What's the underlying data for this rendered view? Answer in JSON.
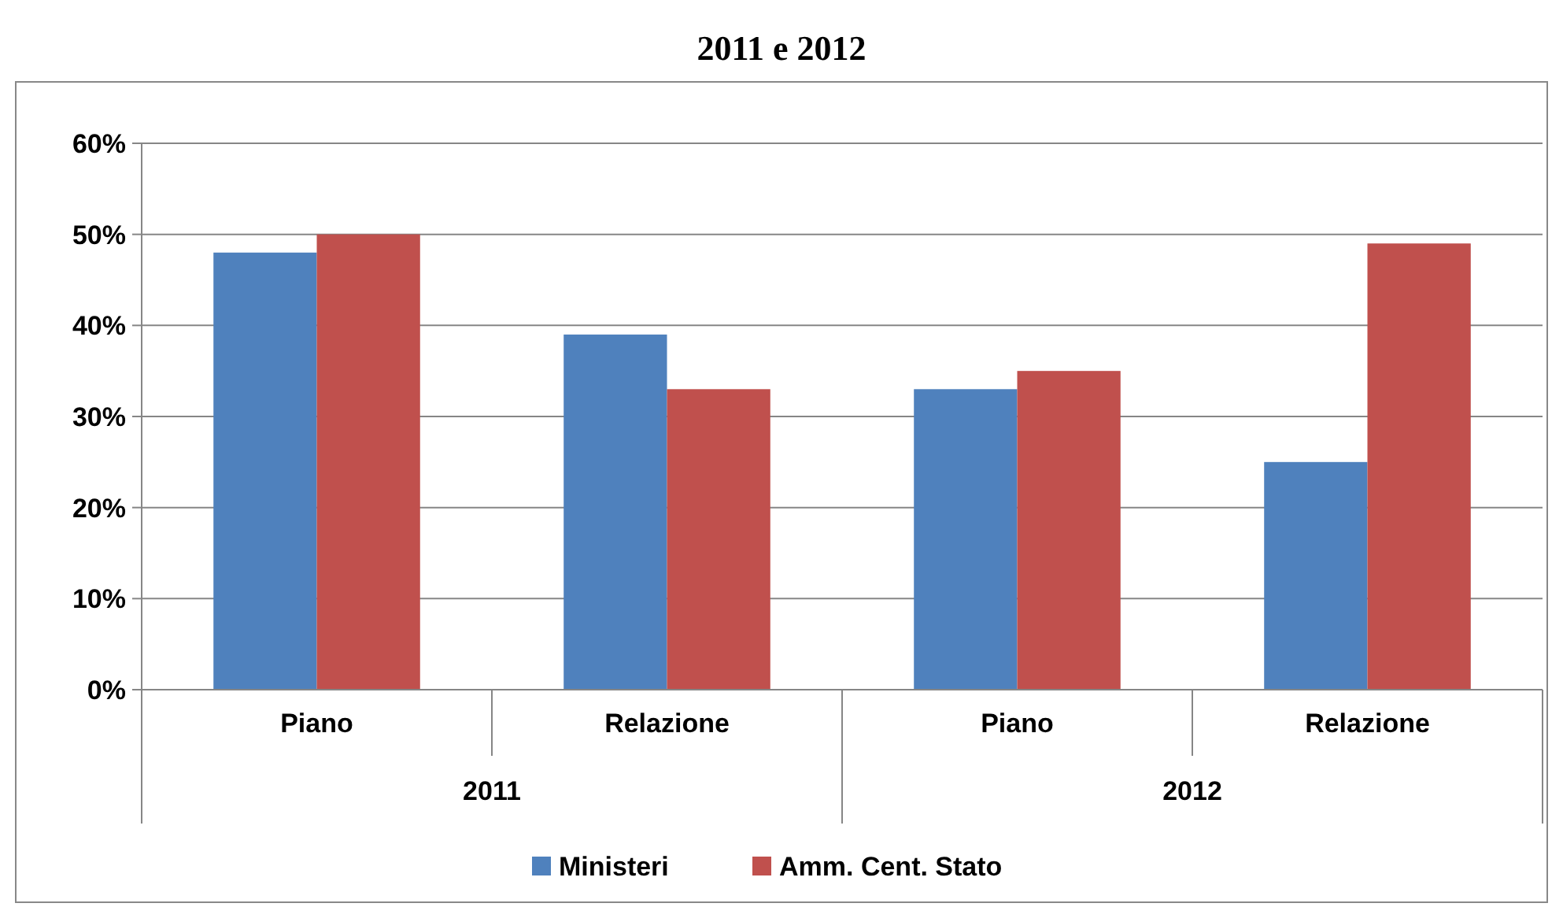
{
  "chart_data": {
    "type": "bar",
    "title": "2011 e 2012",
    "categories": [
      "Piano",
      "Relazione",
      "Piano",
      "Relazione"
    ],
    "series": [
      {
        "name": "Ministeri",
        "color": "#4f81bd",
        "values": [
          48,
          39,
          33,
          25
        ]
      },
      {
        "name": "Amm. Cent. Stato",
        "color": "#c0504d",
        "values": [
          50,
          33,
          35,
          49
        ]
      }
    ],
    "annotations": [
      "2011",
      "2012"
    ],
    "ylim": [
      0,
      60
    ],
    "yticks": [
      {
        "value": 0,
        "label": "0%"
      },
      {
        "value": 10,
        "label": "10%"
      },
      {
        "value": 20,
        "label": "20%"
      },
      {
        "value": 30,
        "label": "30%"
      },
      {
        "value": 40,
        "label": "40%"
      },
      {
        "value": 50,
        "label": "50%"
      },
      {
        "value": 60,
        "label": "60%"
      }
    ],
    "grid": "y",
    "legend": "bottom"
  }
}
